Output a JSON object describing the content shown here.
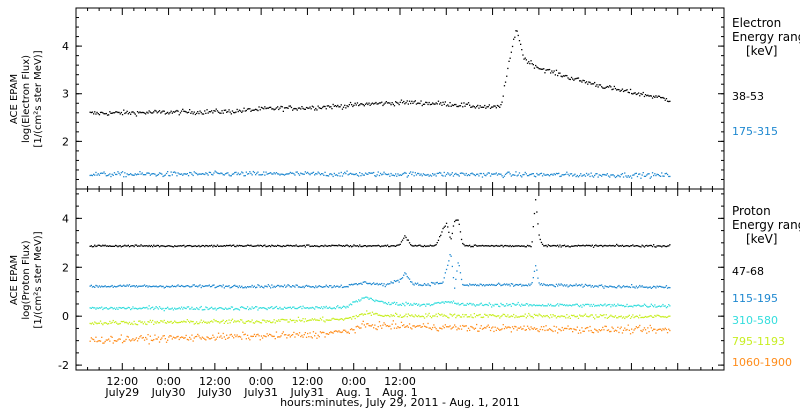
{
  "chart_data": [
    {
      "type": "scatter",
      "panel": "electron",
      "ylabel_lines": [
        "ACE EPAM",
        "log(Electron Flux)",
        "[1/(cm²s ster MeV)]"
      ],
      "y_ticks": [
        "2",
        "3",
        "4"
      ],
      "ylim": [
        1.0,
        4.8
      ],
      "legend_title": [
        "Electron",
        "Energy ranges",
        "[keV]"
      ],
      "series": [
        {
          "name": "38-53",
          "color": "#000000",
          "noise": 0.05,
          "points": [
            [
              3.5,
              2.6
            ],
            [
              20,
              2.62
            ],
            [
              40,
              2.64
            ],
            [
              50,
              2.7
            ],
            [
              60,
              2.72
            ],
            [
              70,
              2.76
            ],
            [
              76,
              2.8
            ],
            [
              86,
              2.83
            ],
            [
              96,
              2.8
            ],
            [
              108,
              2.72
            ],
            [
              110,
              2.75
            ],
            [
              112,
              3.6
            ],
            [
              114,
              4.4
            ],
            [
              116,
              3.75
            ],
            [
              120,
              3.55
            ],
            [
              130,
              3.3
            ],
            [
              140,
              3.1
            ],
            [
              150,
              2.95
            ],
            [
              154,
              2.88
            ]
          ]
        },
        {
          "name": "175-315",
          "color": "#1e88d0",
          "noise": 0.05,
          "points": [
            [
              3.5,
              1.32
            ],
            [
              50,
              1.33
            ],
            [
              100,
              1.32
            ],
            [
              154,
              1.3
            ]
          ]
        }
      ]
    },
    {
      "type": "scatter",
      "panel": "proton",
      "ylabel_lines": [
        "ACE EPAM",
        "log(Proton Flux)",
        "[1/(cm²s ster MeV)]"
      ],
      "y_ticks": [
        "-2",
        "0",
        "2",
        "4"
      ],
      "ylim": [
        -2.2,
        5.2
      ],
      "legend_title": [
        "Proton",
        "Energy ranges",
        "[keV]"
      ],
      "series": [
        {
          "name": "47-68",
          "color": "#000000",
          "noise": 0.04,
          "points": [
            [
              3.5,
              2.9
            ],
            [
              83,
              2.9
            ],
            [
              84,
              3.0
            ],
            [
              85,
              3.3
            ],
            [
              86,
              3.1
            ],
            [
              87,
              2.9
            ],
            [
              93,
              2.9
            ],
            [
              94,
              3.2
            ],
            [
              95,
              3.6
            ],
            [
              96,
              3.8
            ],
            [
              97,
              3.1
            ],
            [
              98,
              3.9
            ],
            [
              99,
              4.0
            ],
            [
              100,
              3.0
            ],
            [
              101,
              2.9
            ],
            [
              118,
              2.9
            ],
            [
              119,
              4.8
            ],
            [
              120,
              3.2
            ],
            [
              121,
              2.9
            ],
            [
              154,
              2.9
            ]
          ]
        },
        {
          "name": "115-195",
          "color": "#1e88d0",
          "noise": 0.06,
          "points": [
            [
              3.5,
              1.25
            ],
            [
              70,
              1.25
            ],
            [
              75,
              1.4
            ],
            [
              80,
              1.3
            ],
            [
              84,
              1.5
            ],
            [
              85,
              1.8
            ],
            [
              87,
              1.4
            ],
            [
              89,
              1.3
            ],
            [
              95,
              1.4
            ],
            [
              97,
              2.6
            ],
            [
              98,
              1.2
            ],
            [
              99,
              2.3
            ],
            [
              100,
              1.3
            ],
            [
              118,
              1.3
            ],
            [
              119,
              2.1
            ],
            [
              120,
              1.3
            ],
            [
              154,
              1.2
            ]
          ]
        },
        {
          "name": "310-580",
          "color": "#33dddd",
          "noise": 0.07,
          "points": [
            [
              3.5,
              0.35
            ],
            [
              40,
              0.35
            ],
            [
              70,
              0.38
            ],
            [
              72,
              0.6
            ],
            [
              75,
              0.8
            ],
            [
              80,
              0.55
            ],
            [
              90,
              0.5
            ],
            [
              97,
              0.6
            ],
            [
              100,
              0.5
            ],
            [
              154,
              0.45
            ]
          ]
        },
        {
          "name": "795-1193",
          "color": "#c8ee22",
          "noise": 0.09,
          "points": [
            [
              3.5,
              -0.25
            ],
            [
              40,
              -0.2
            ],
            [
              70,
              -0.1
            ],
            [
              75,
              0.15
            ],
            [
              80,
              0.05
            ],
            [
              100,
              0.05
            ],
            [
              154,
              0.0
            ]
          ]
        },
        {
          "name": "1060-1900",
          "color": "#ff8c1a",
          "noise": 0.14,
          "points": [
            [
              3.5,
              -0.95
            ],
            [
              30,
              -0.85
            ],
            [
              60,
              -0.75
            ],
            [
              70,
              -0.6
            ],
            [
              75,
              -0.35
            ],
            [
              90,
              -0.4
            ],
            [
              100,
              -0.45
            ],
            [
              154,
              -0.55
            ]
          ]
        }
      ]
    }
  ],
  "x_axis": {
    "range_hours": [
      0,
      168
    ],
    "ticks": [
      {
        "hours": 12,
        "time": "12:00",
        "date": "July29"
      },
      {
        "hours": 24,
        "time": "0:00",
        "date": "July30"
      },
      {
        "hours": 36,
        "time": "12:00",
        "date": "July30"
      },
      {
        "hours": 48,
        "time": "0:00",
        "date": "July31"
      },
      {
        "hours": 60,
        "time": "12:00",
        "date": "July31"
      },
      {
        "hours": 72,
        "time": "0:00",
        "date": "Aug. 1"
      },
      {
        "hours": 84,
        "time": "12:00",
        "date": "Aug. 1"
      }
    ],
    "title": "hours:minutes, July 29, 2011 - Aug. 1, 2011"
  }
}
